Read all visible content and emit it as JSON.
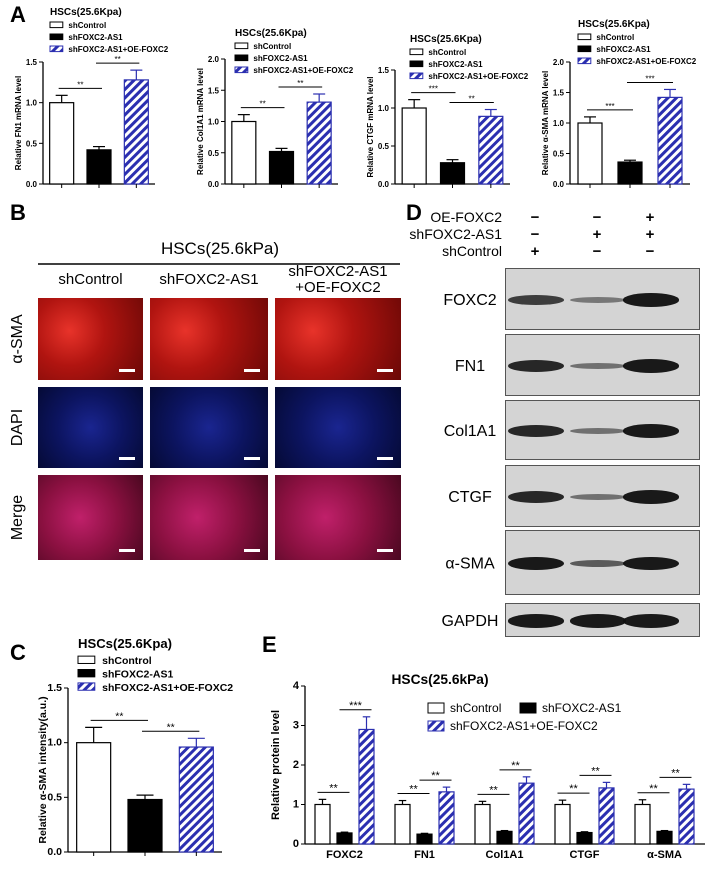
{
  "panel_letters": {
    "A": "A",
    "B": "B",
    "C": "C",
    "D": "D",
    "E": "E"
  },
  "colors": {
    "control": "#ffffff",
    "knockdown": "#000000",
    "rescue_stripe": "#2b2fb0"
  },
  "legend": [
    "shControl",
    "shFOXC2-AS1",
    "shFOXC2-AS1+OE-FOXC2"
  ],
  "chart_data": [
    {
      "type": "bar",
      "title": "HSCs(25.6Kpa)",
      "ylabel": "Relative FN1 mRNA level",
      "ylim": [
        0,
        1.5
      ],
      "ticks": [
        "0.0",
        "0.5",
        "1.0",
        "1.5"
      ],
      "categories": [
        "shControl",
        "shFOXC2-AS1",
        "shFOXC2-AS1+OE-FOXC2"
      ],
      "values": [
        1.0,
        0.42,
        1.28
      ],
      "errors": [
        0.09,
        0.04,
        0.12
      ],
      "significance": [
        "**",
        "**"
      ]
    },
    {
      "type": "bar",
      "title": "HSCs(25.6Kpa)",
      "ylabel": "Relative Col1A1 mRNA level",
      "ylim": [
        0,
        2.0
      ],
      "ticks": [
        "0.0",
        "0.5",
        "1.0",
        "1.5",
        "2.0"
      ],
      "categories": [
        "shControl",
        "shFOXC2-AS1",
        "shFOXC2-AS1+OE-FOXC2"
      ],
      "values": [
        1.0,
        0.52,
        1.31
      ],
      "errors": [
        0.11,
        0.05,
        0.13
      ],
      "significance": [
        "**",
        "**"
      ]
    },
    {
      "type": "bar",
      "title": "HSCs(25.6Kpa)",
      "ylabel": "Relative CTGF mRNA level",
      "ylim": [
        0,
        1.5
      ],
      "ticks": [
        "0.0",
        "0.5",
        "1.0",
        "1.5"
      ],
      "categories": [
        "shControl",
        "shFOXC2-AS1",
        "shFOXC2-AS1+OE-FOXC2"
      ],
      "values": [
        1.0,
        0.28,
        0.89
      ],
      "errors": [
        0.11,
        0.04,
        0.09
      ],
      "significance": [
        "***",
        "**"
      ]
    },
    {
      "type": "bar",
      "title": "HSCs(25.6Kpa)",
      "ylabel": "Relative α-SMA  mRNA level",
      "ylim": [
        0,
        2.0
      ],
      "ticks": [
        "0.0",
        "0.5",
        "1.0",
        "1.5",
        "2.0"
      ],
      "categories": [
        "shControl",
        "shFOXC2-AS1",
        "shFOXC2-AS1+OE-FOXC2"
      ],
      "values": [
        1.0,
        0.36,
        1.42
      ],
      "errors": [
        0.1,
        0.03,
        0.13
      ],
      "significance": [
        "***",
        "***"
      ]
    },
    {
      "type": "bar",
      "title": "HSCs(25.6Kpa)",
      "ylabel": "Relative α-SMA  intensity(a.u.)",
      "ylim": [
        0,
        1.5
      ],
      "ticks": [
        "0.0",
        "0.5",
        "1.0",
        "1.5"
      ],
      "categories": [
        "shControl",
        "shFOXC2-AS1",
        "shFOXC2-AS1+OE-FOXC2"
      ],
      "values": [
        1.0,
        0.48,
        0.96
      ],
      "errors": [
        0.14,
        0.04,
        0.08
      ],
      "significance": [
        "**",
        "**"
      ]
    },
    {
      "type": "bar",
      "title": "HSCs(25.6kPa)",
      "ylabel": "Relative  protein level",
      "ylim": [
        0,
        4
      ],
      "ticks": [
        "0",
        "1",
        "2",
        "3",
        "4"
      ],
      "categories": [
        "FOXC2",
        "FN1",
        "Col1A1",
        "CTGF",
        "α-SMA"
      ],
      "series": [
        {
          "name": "shControl",
          "values": [
            1.0,
            1.0,
            1.0,
            1.0,
            1.0
          ],
          "errors": [
            0.13,
            0.1,
            0.08,
            0.11,
            0.12
          ]
        },
        {
          "name": "shFOXC2-AS1",
          "values": [
            0.28,
            0.25,
            0.32,
            0.29,
            0.32
          ],
          "errors": [
            0.02,
            0.02,
            0.02,
            0.02,
            0.02
          ]
        },
        {
          "name": "shFOXC2-AS1+OE-FOXC2",
          "values": [
            2.9,
            1.32,
            1.54,
            1.42,
            1.39
          ],
          "errors": [
            0.32,
            0.12,
            0.16,
            0.14,
            0.12
          ]
        }
      ],
      "significance": [
        [
          "**",
          "***"
        ],
        [
          "**",
          "**"
        ],
        [
          "**",
          "**"
        ],
        [
          "**",
          "**"
        ],
        [
          "**",
          "**"
        ]
      ]
    }
  ],
  "panel_b": {
    "title": "HSCs(25.6kPa)",
    "columns": [
      "shControl",
      "shFOXC2-AS1",
      "shFOXC2-AS1\n+OE-FOXC2"
    ],
    "rows": [
      "α-SMA",
      "DAPI",
      "Merge"
    ]
  },
  "panel_d": {
    "conditions": [
      {
        "label": "OE-FOXC2",
        "signs": [
          "−",
          "−",
          "+"
        ]
      },
      {
        "label": "shFOXC2-AS1",
        "signs": [
          "−",
          "+",
          "+"
        ]
      },
      {
        "label": "shControl",
        "signs": [
          "+",
          "−",
          "−"
        ]
      }
    ],
    "blots": [
      {
        "label": "FOXC2",
        "intensity": [
          0.7,
          0.3,
          0.95
        ]
      },
      {
        "label": "FN1",
        "intensity": [
          0.85,
          0.35,
          0.95
        ]
      },
      {
        "label": "Col1A1",
        "intensity": [
          0.85,
          0.35,
          0.95
        ]
      },
      {
        "label": "CTGF",
        "intensity": [
          0.85,
          0.35,
          0.95
        ]
      },
      {
        "label": "α-SMA",
        "intensity": [
          0.95,
          0.5,
          0.95
        ]
      },
      {
        "label": "GAPDH",
        "intensity": [
          0.95,
          0.95,
          0.95
        ]
      }
    ]
  }
}
